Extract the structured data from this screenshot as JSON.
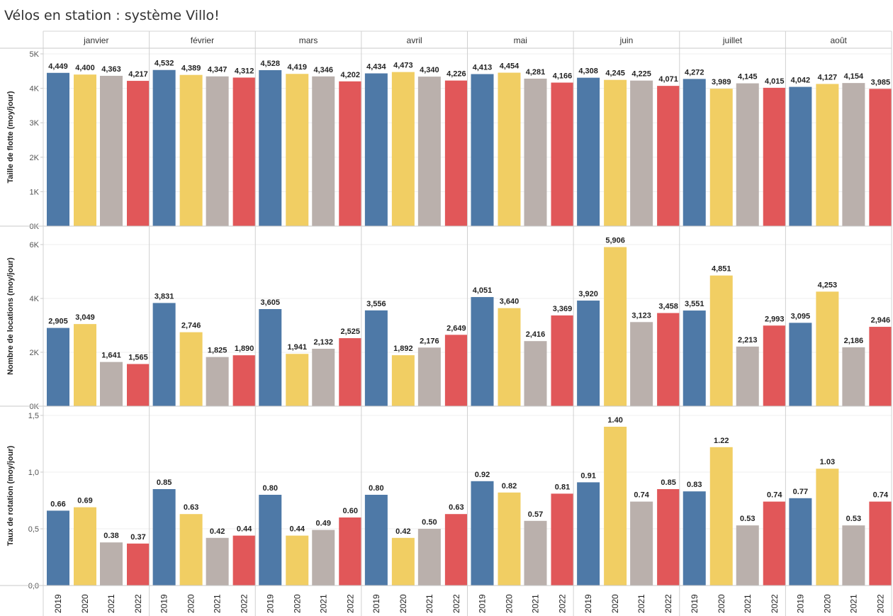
{
  "chart_data": {
    "type": "bar",
    "title": "Vélos en station : système Villo!",
    "months": [
      "janvier",
      "février",
      "mars",
      "avril",
      "mai",
      "juin",
      "juillet",
      "août"
    ],
    "years": [
      "2019",
      "2020",
      "2021",
      "2022"
    ],
    "colors": {
      "2019": "#4e79a7",
      "2020": "#f1ce63",
      "2021": "#bab0ac",
      "2022": "#e15759"
    },
    "grid": true,
    "panels": [
      {
        "ylabel": "Taille de flotte (moy/jour)",
        "ylim": [
          0,
          5000
        ],
        "yticks": [
          0,
          1000,
          2000,
          3000,
          4000,
          5000
        ],
        "ytick_labels": [
          "0K",
          "1K",
          "2K",
          "3K",
          "4K",
          "5K"
        ],
        "values": [
          [
            4449,
            4400,
            4363,
            4217
          ],
          [
            4532,
            4389,
            4347,
            4312
          ],
          [
            4528,
            4419,
            4346,
            4202
          ],
          [
            4434,
            4473,
            4340,
            4226
          ],
          [
            4413,
            4454,
            4281,
            4166
          ],
          [
            4308,
            4245,
            4225,
            4071
          ],
          [
            4272,
            3989,
            4145,
            4015
          ],
          [
            4042,
            4127,
            4154,
            3985
          ]
        ],
        "labels": [
          [
            "4,449",
            "4,400",
            "4,363",
            "4,217"
          ],
          [
            "4,532",
            "4,389",
            "4,347",
            "4,312"
          ],
          [
            "4,528",
            "4,419",
            "4,346",
            "4,202"
          ],
          [
            "4,434",
            "4,473",
            "4,340",
            "4,226"
          ],
          [
            "4,413",
            "4,454",
            "4,281",
            "4,166"
          ],
          [
            "4,308",
            "4,245",
            "4,225",
            "4,071"
          ],
          [
            "4,272",
            "3,989",
            "4,145",
            "4,015"
          ],
          [
            "4,042",
            "4,127",
            "4,154",
            "3,985"
          ]
        ]
      },
      {
        "ylabel": "Nombre de locations (moy/jour)",
        "ylim": [
          0,
          6500
        ],
        "yticks": [
          0,
          2000,
          4000,
          6000
        ],
        "ytick_labels": [
          "0K",
          "2K",
          "4K",
          "6K"
        ],
        "values": [
          [
            2905,
            3049,
            1641,
            1565
          ],
          [
            3831,
            2746,
            1825,
            1890
          ],
          [
            3605,
            1941,
            2132,
            2525
          ],
          [
            3556,
            1892,
            2176,
            2649
          ],
          [
            4051,
            3640,
            2416,
            3369
          ],
          [
            3920,
            5906,
            3123,
            3458
          ],
          [
            3551,
            4851,
            2213,
            2993
          ],
          [
            3095,
            4253,
            2186,
            2946
          ]
        ],
        "labels": [
          [
            "2,905",
            "3,049",
            "1,641",
            "1,565"
          ],
          [
            "3,831",
            "2,746",
            "1,825",
            "1,890"
          ],
          [
            "3,605",
            "1,941",
            "2,132",
            "2,525"
          ],
          [
            "3,556",
            "1,892",
            "2,176",
            "2,649"
          ],
          [
            "4,051",
            "3,640",
            "2,416",
            "3,369"
          ],
          [
            "3,920",
            "5,906",
            "3,123",
            "3,458"
          ],
          [
            "3,551",
            "4,851",
            "2,213",
            "2,993"
          ],
          [
            "3,095",
            "4,253",
            "2,186",
            "2,946"
          ]
        ]
      },
      {
        "ylabel": "Taux de rotation (moy/jour)",
        "ylim": [
          0,
          1.5
        ],
        "yticks": [
          0,
          0.5,
          1.0,
          1.5
        ],
        "ytick_labels": [
          "0,0",
          "0,5",
          "1,0",
          "1,5"
        ],
        "values": [
          [
            0.66,
            0.69,
            0.38,
            0.37
          ],
          [
            0.85,
            0.63,
            0.42,
            0.44
          ],
          [
            0.8,
            0.44,
            0.49,
            0.6
          ],
          [
            0.8,
            0.42,
            0.5,
            0.63
          ],
          [
            0.92,
            0.82,
            0.57,
            0.81
          ],
          [
            0.91,
            1.4,
            0.74,
            0.85
          ],
          [
            0.83,
            1.22,
            0.53,
            0.74
          ],
          [
            0.77,
            1.03,
            0.53,
            0.74
          ]
        ],
        "labels": [
          [
            "0.66",
            "0.69",
            "0.38",
            "0.37"
          ],
          [
            "0.85",
            "0.63",
            "0.42",
            "0.44"
          ],
          [
            "0.80",
            "0.44",
            "0.49",
            "0.60"
          ],
          [
            "0.80",
            "0.42",
            "0.50",
            "0.63"
          ],
          [
            "0.92",
            "0.82",
            "0.57",
            "0.81"
          ],
          [
            "0.91",
            "1.40",
            "0.74",
            "0.85"
          ],
          [
            "0.83",
            "1.22",
            "0.53",
            "0.74"
          ],
          [
            "0.77",
            "1.03",
            "0.53",
            "0.74"
          ]
        ]
      }
    ]
  }
}
